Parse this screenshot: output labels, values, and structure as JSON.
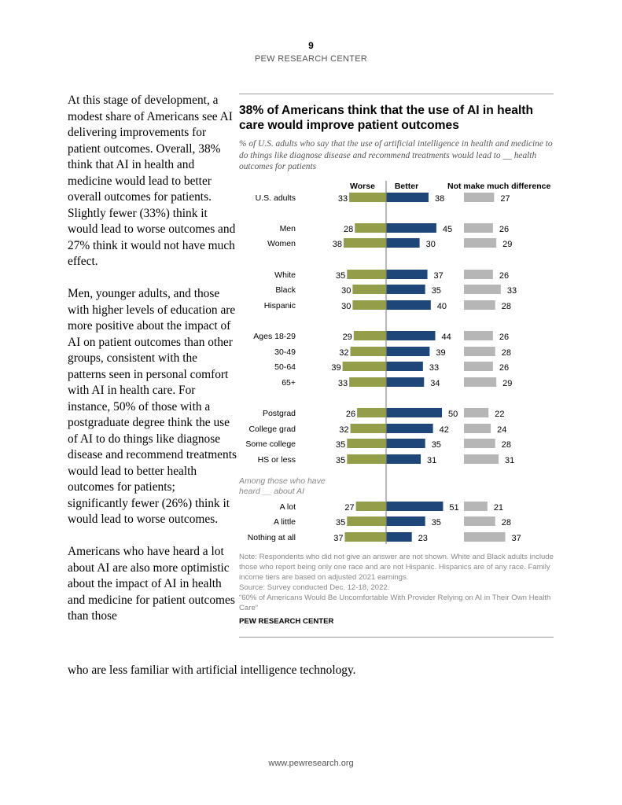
{
  "header": {
    "page_number": "9",
    "organization": "PEW RESEARCH CENTER"
  },
  "body_text": {
    "paragraphs": [
      "At this stage of development, a modest share of Americans see AI delivering improvements for patient outcomes. Overall, 38% think that AI in health and medicine would lead to better overall outcomes for patients. Slightly fewer (33%) think it would lead to worse outcomes and 27% think it would not have much effect.",
      "Men, younger adults, and those with higher levels of education are more positive about the impact of AI on patient outcomes than other groups, consistent with the patterns seen in personal comfort with AI in health care. For instance, 50% of those with a postgraduate degree think the use of AI to do things like diagnose disease and recommend treatments would lead to better health outcomes for patients; significantly fewer (26%) think it would lead to worse outcomes.",
      "Americans who have heard a lot about AI are also more optimistic about the impact of AI in health and medicine for patient outcomes than those"
    ],
    "last_line": "who are less familiar with artificial intelligence technology."
  },
  "chart_data": {
    "type": "bar",
    "orientation": "horizontal",
    "title": "38% of Americans think that the use of AI in health care would improve patient outcomes",
    "subtitle": "% of U.S. adults who say that the use of artificial intelligence in health and medicine to do things like diagnose disease and recommend treatments would lead to __ health outcomes for patients",
    "categories": [
      "U.S. adults",
      "Men",
      "Women",
      "White",
      "Black",
      "Hispanic",
      "Ages 18-29",
      "30-49",
      "50-64",
      "65+",
      "Postgrad",
      "College grad",
      "Some college",
      "HS or less",
      "A lot",
      "A little",
      "Nothing at all"
    ],
    "group_subheading": "Among those who have heard __ about AI",
    "series": [
      {
        "name": "Worse",
        "color": "#949d48",
        "values": [
          33,
          28,
          38,
          35,
          30,
          30,
          29,
          32,
          39,
          33,
          26,
          32,
          35,
          35,
          27,
          35,
          37
        ]
      },
      {
        "name": "Better",
        "color": "#1f4679",
        "values": [
          38,
          45,
          30,
          37,
          35,
          40,
          44,
          39,
          33,
          34,
          50,
          42,
          35,
          31,
          51,
          35,
          23
        ]
      },
      {
        "name": "Not make much difference",
        "color": "#b6b6b6",
        "values": [
          27,
          26,
          29,
          26,
          33,
          28,
          26,
          28,
          26,
          29,
          22,
          24,
          28,
          31,
          21,
          28,
          37
        ]
      }
    ],
    "notes": [
      "Note: Respondents who did not give an answer are not shown. White and Black adults include those who report being only one race and are not Hispanic. Hispanics are of any race. Family income tiers are based on adjusted 2021 earnings.",
      "Source: Survey conducted Dec. 12-18, 2022.",
      "“60% of Americans Would Be Uncomfortable With Provider Relying on AI in Their Own Health Care”"
    ],
    "brand": "PEW RESEARCH CENTER"
  },
  "footer": {
    "url": "www.pewresearch.org"
  }
}
